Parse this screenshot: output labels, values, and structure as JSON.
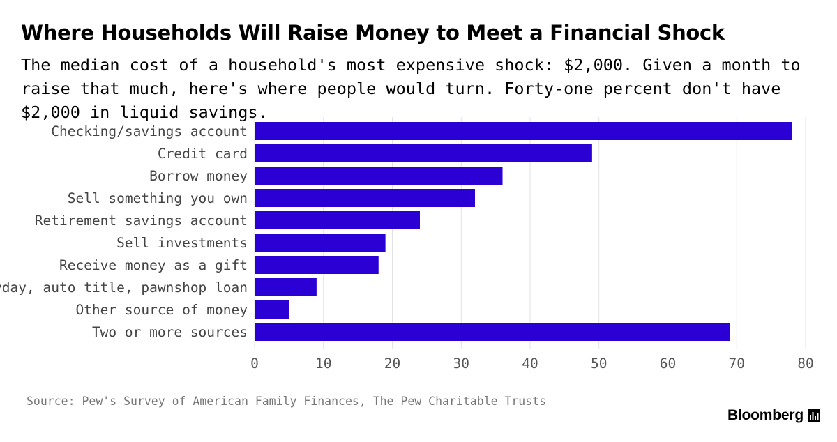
{
  "title": "Where Households Will Raise Money to Meet a Financial Shock",
  "subtitle": "The median cost of a household's most expensive shock: $2,000. Given a month to raise that much, here's where people would turn. Forty-one percent don't have $2,000 in liquid savings.",
  "source": "Source: Pew's Survey of American Family Finances, The Pew Charitable Trusts",
  "brand": {
    "name": "Bloomberg",
    "icon": "bloomberg-chart-icon"
  },
  "colors": {
    "bar": "#2a00d4",
    "grid": "#e3e3e3",
    "tick_label": "#555555",
    "category_label": "#444444"
  },
  "chart_data": {
    "type": "bar",
    "orientation": "horizontal",
    "categories": [
      "Checking/savings account",
      "Credit card",
      "Borrow money",
      "Sell something you own",
      "Retirement savings account",
      "Sell investments",
      "Receive money as a gift",
      "Payday, auto title, pawnshop loan",
      "Other source of money",
      "Two or more sources"
    ],
    "values": [
      78,
      49,
      36,
      32,
      24,
      19,
      18,
      9,
      5,
      69
    ],
    "xlim": [
      0,
      80
    ],
    "xticks": [
      0,
      10,
      20,
      30,
      40,
      50,
      60,
      70,
      80
    ],
    "grid": true,
    "legend": "none"
  }
}
